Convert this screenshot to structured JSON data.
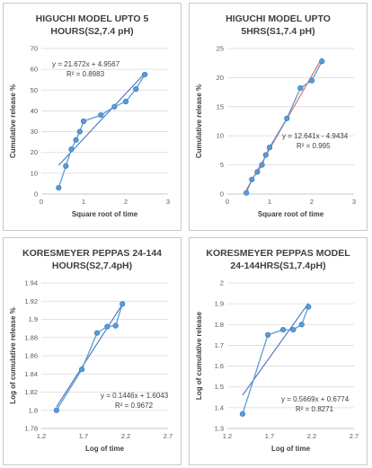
{
  "chart_data": [
    {
      "type": "scatter",
      "title_line1": "HIGUCHI MODEL UPTO 5",
      "title_line2": "HOURS(S2,7.4 pH)",
      "xlabel": "Square root of time",
      "ylabel": "Cumulative release %",
      "xlim": [
        0,
        3
      ],
      "ylim": [
        0,
        70
      ],
      "xticks": [
        "0",
        "1",
        "2",
        "3"
      ],
      "yticks": [
        "0",
        "10",
        "20",
        "30",
        "40",
        "50",
        "60",
        "70"
      ],
      "xtick_values": [
        0,
        1,
        2,
        3
      ],
      "ytick_values": [
        0,
        10,
        20,
        30,
        40,
        50,
        60,
        70
      ],
      "x": [
        0.41,
        0.58,
        0.71,
        0.82,
        0.91,
        1.0,
        1.41,
        1.73,
        2.0,
        2.24,
        2.45
      ],
      "y": [
        3,
        13.5,
        21.5,
        26,
        30,
        35,
        38,
        42,
        44.5,
        50.5,
        57.5
      ],
      "equation": "y = 21.672x + 4.9567",
      "r2": "R² = 0.8983",
      "trend": {
        "slope": 21.672,
        "intercept": 4.9567,
        "x_start": 0.41,
        "x_end": 2.45
      },
      "grid": "horizontal"
    },
    {
      "type": "scatter",
      "title_line1": "HIGUCHI MODEL UPTO",
      "title_line2": "5HRS(S1,7.4 pH)",
      "xlabel": "Square root of time",
      "ylabel": "Cumulative release %",
      "xlim": [
        0,
        3
      ],
      "ylim": [
        0,
        25
      ],
      "xticks": [
        "0",
        "1",
        "2",
        "3"
      ],
      "yticks": [
        "0",
        "5",
        "10",
        "15",
        "20",
        "25"
      ],
      "xtick_values": [
        0,
        1,
        2,
        3
      ],
      "ytick_values": [
        0,
        5,
        10,
        15,
        20,
        25
      ],
      "x": [
        0.45,
        0.58,
        0.71,
        0.82,
        0.91,
        1.0,
        1.41,
        1.73,
        2.0,
        2.24
      ],
      "y": [
        0.2,
        2.5,
        3.8,
        5.0,
        6.7,
        8.0,
        13.0,
        18.2,
        19.5,
        22.8
      ],
      "equation": "y = 12.641x - 4.9434",
      "r2": "R² = 0.995",
      "trend": {
        "slope": 12.641,
        "intercept": -4.9434,
        "x_start": 0.45,
        "x_end": 2.24
      },
      "grid": "horizontal"
    },
    {
      "type": "scatter",
      "title_line1": "KORESMEYER PEPPAS 24-144",
      "title_line2": "HOURS(S2,7.4pH)",
      "xlabel": "Log of time",
      "ylabel": "Log of cumulative release %",
      "xlim": [
        1.2,
        2.7
      ],
      "ylim": [
        1.78,
        1.94
      ],
      "xticks": [
        "1.2",
        "1.7",
        "2.2",
        "2.7"
      ],
      "yticks": [
        "1.78",
        "1.8",
        "1.82",
        "1.84",
        "1.86",
        "1.88",
        "1.9",
        "1.92",
        "1.94"
      ],
      "xtick_values": [
        1.2,
        1.7,
        2.2,
        2.7
      ],
      "ytick_values": [
        1.78,
        1.8,
        1.82,
        1.84,
        1.86,
        1.88,
        1.9,
        1.92,
        1.94
      ],
      "x": [
        1.38,
        1.68,
        1.86,
        1.98,
        2.08,
        2.16
      ],
      "y": [
        1.8,
        1.845,
        1.885,
        1.892,
        1.893,
        1.917
      ],
      "equation": "y = 0.1446x + 1.6043",
      "r2": "R² = 0.9672",
      "trend": {
        "slope": 0.1446,
        "intercept": 1.6043,
        "x_start": 1.38,
        "x_end": 2.16
      },
      "grid": "horizontal"
    },
    {
      "type": "scatter",
      "title_line1": "KORESMEYER PEPPAS MODEL",
      "title_line2": "24-144HRS(S1,7.4pH)",
      "xlabel": "Log of time",
      "ylabel": "Log of cumulative release",
      "xlim": [
        1.2,
        2.7
      ],
      "ylim": [
        1.3,
        2.0
      ],
      "xticks": [
        "1.2",
        "1.7",
        "2.2",
        "2.7"
      ],
      "yticks": [
        "1.3",
        "1.4",
        "1.5",
        "1.6",
        "1.7",
        "1.8",
        "1.9",
        "2"
      ],
      "xtick_values": [
        1.2,
        1.7,
        2.2,
        2.7
      ],
      "ytick_values": [
        1.3,
        1.4,
        1.5,
        1.6,
        1.7,
        1.8,
        1.9,
        2.0
      ],
      "x": [
        1.38,
        1.68,
        1.86,
        1.98,
        2.08,
        2.16
      ],
      "y": [
        1.37,
        1.75,
        1.775,
        1.775,
        1.8,
        1.885
      ],
      "equation": "y = 0.5669x + 0.6774",
      "r2": "R² = 0.8271",
      "trend": {
        "slope": 0.5669,
        "intercept": 0.6774,
        "x_start": 1.38,
        "x_end": 2.16
      },
      "grid": "horizontal"
    }
  ],
  "colors": {
    "series": "#5b9bd5",
    "marker_edge": "#2e75b6",
    "trendline_primary": "#4472c4",
    "trendline_secondary": "#e06666"
  }
}
